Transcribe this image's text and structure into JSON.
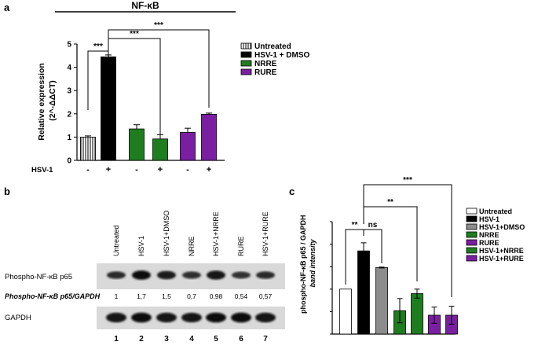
{
  "panel_a": {
    "letter": "a",
    "title": "NF-κB",
    "ylabel_line1": "Relative expression",
    "ylabel_line2": "(2^-ΔΔCT)",
    "y_ticks": [
      "0",
      "1",
      "2",
      "3",
      "4",
      "5"
    ],
    "row_label": "HSV-1",
    "hsv_signs": [
      "-",
      "+",
      "-",
      "+",
      "-",
      "+"
    ],
    "sig": [
      "***",
      "***",
      "***"
    ],
    "legend": [
      {
        "label": "Untreated",
        "pattern": "striped"
      },
      {
        "label": "HSV-1 + DMSO",
        "color": "#000000"
      },
      {
        "label": "NRRE",
        "color": "#1e7d1e"
      },
      {
        "label": "RURE",
        "color": "#7a1fa2"
      }
    ]
  },
  "panel_b": {
    "letter": "b",
    "lane_labels": [
      "Untreated",
      "HSV-1",
      "HSV-1+DMSO",
      "NRRE",
      "HSV-1+NRRE",
      "RURE",
      "HSV-1+RURE"
    ],
    "row1_label": "Phospho-NF-κB p65",
    "ratio_label": "Phospho-NF-κB p65/GAPDH",
    "ratios": [
      "1",
      "1,7",
      "1,5",
      "0,7",
      "0,98",
      "0,54",
      "0,57"
    ],
    "row2_label": "GAPDH",
    "lane_numbers": [
      "1",
      "2",
      "3",
      "4",
      "5",
      "6",
      "7"
    ],
    "p65_band_intensity": [
      0.6,
      0.95,
      0.8,
      0.55,
      0.9,
      0.5,
      0.6
    ],
    "gapdh_band_intensity": [
      0.9,
      0.92,
      0.88,
      0.85,
      0.92,
      0.95,
      0.9
    ]
  },
  "panel_c": {
    "letter": "c",
    "ylabel_line1": "phospho-NF-κB p65 / GAPDH",
    "ylabel_line2": "band intensity",
    "y_ticks": [
      "0.0",
      "0.5",
      "1.0",
      "1.5",
      "2.0",
      "2.5"
    ],
    "sig": [
      "**",
      "ns",
      "**",
      "***"
    ],
    "legend": [
      {
        "label": "Untreated",
        "color": "#ffffff"
      },
      {
        "label": "HSV-1",
        "color": "#000000"
      },
      {
        "label": "HSV-1+DMSO",
        "color": "#8c8c8c"
      },
      {
        "label": "NRRE",
        "color": "#1e7d1e"
      },
      {
        "label": "RURE",
        "color": "#7a1fa2"
      },
      {
        "label": "HSV-1+NRRE",
        "color": "#1e7d1e"
      },
      {
        "label": "HSV-1+RURE",
        "color": "#7a1fa2"
      }
    ]
  },
  "chart_data": [
    {
      "type": "bar",
      "title": "NF-κB",
      "ylabel": "Relative expression (2^-ΔΔCT)",
      "ylim": [
        0,
        5
      ],
      "categories": [
        "Untreated",
        "HSV-1 + DMSO",
        "NRRE",
        "HSV-1 + NRRE",
        "RURE",
        "HSV-1 + RURE"
      ],
      "values": [
        1.0,
        4.45,
        1.35,
        0.92,
        1.2,
        1.98
      ],
      "errors": [
        0.05,
        0.08,
        0.18,
        0.18,
        0.18,
        0.05
      ],
      "colors": [
        "#ffffff",
        "#000000",
        "#1e7d1e",
        "#1e7d1e",
        "#7a1fa2",
        "#7a1fa2"
      ]
    },
    {
      "type": "bar",
      "ylabel": "phospho-NF-κB p65 / GAPDH band intensity",
      "ylim": [
        0,
        2.5
      ],
      "categories": [
        "Untreated",
        "HSV-1",
        "HSV-1+DMSO",
        "NRRE",
        "HSV-1+NRRE",
        "RURE",
        "HSV-1+RURE"
      ],
      "values": [
        1.0,
        1.85,
        1.48,
        0.52,
        0.9,
        0.42,
        0.42
      ],
      "errors": [
        0.0,
        0.18,
        0.01,
        0.27,
        0.1,
        0.18,
        0.2
      ],
      "colors": [
        "#ffffff",
        "#000000",
        "#8c8c8c",
        "#1e7d1e",
        "#1e7d1e",
        "#7a1fa2",
        "#7a1fa2"
      ]
    }
  ]
}
